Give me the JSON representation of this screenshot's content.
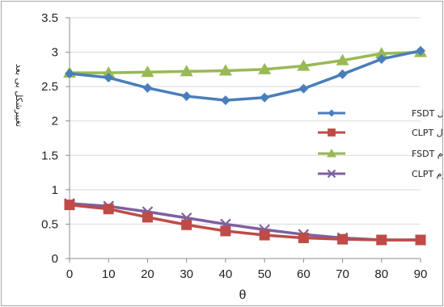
{
  "chart_data": {
    "type": "line",
    "title": "",
    "xlabel": "θ",
    "ylabel": "تغییرشکل بی بعد",
    "x": [
      0,
      10,
      20,
      30,
      40,
      50,
      60,
      70,
      80,
      90
    ],
    "xlim": [
      0,
      90
    ],
    "ylim": [
      0,
      3.5
    ],
    "x_ticks": [
      "0",
      "10",
      "20",
      "30",
      "40",
      "50",
      "60",
      "70",
      "80",
      "90"
    ],
    "y_ticks": [
      "0",
      "0.5",
      "1",
      "1.5",
      "2",
      "2.5",
      "3",
      "3.5"
    ],
    "grid": "horizontal",
    "legend_position": "right",
    "series": [
      {
        "name": "هسته نوع اول  FSDT",
        "color": "#4a7ebb",
        "marker": "diamond",
        "values": [
          2.69,
          2.63,
          2.48,
          2.36,
          2.3,
          2.34,
          2.47,
          2.68,
          2.9,
          3.02
        ]
      },
      {
        "name": "هسته نوع اول  CLPT",
        "color": "#be4b48",
        "marker": "square",
        "values": [
          0.78,
          0.72,
          0.6,
          0.49,
          0.4,
          0.34,
          0.3,
          0.28,
          0.27,
          0.27
        ]
      },
      {
        "name": "هسته نوع دوم  FSDT",
        "color": "#98b954",
        "marker": "triangle",
        "values": [
          2.7,
          2.7,
          2.71,
          2.72,
          2.73,
          2.75,
          2.8,
          2.88,
          2.98,
          3.0
        ]
      },
      {
        "name": "هسته نوع دوم  CLPT",
        "color": "#7d60a0",
        "marker": "x",
        "values": [
          0.8,
          0.76,
          0.68,
          0.59,
          0.5,
          0.42,
          0.35,
          0.3,
          0.27,
          0.27
        ]
      }
    ]
  }
}
